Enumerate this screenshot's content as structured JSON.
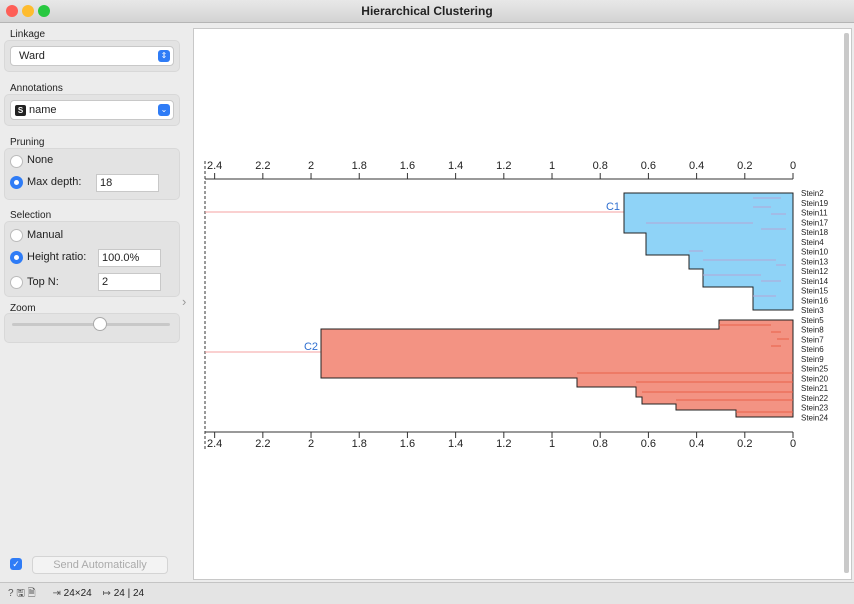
{
  "window": {
    "title": "Hierarchical Clustering"
  },
  "sidebar": {
    "linkage": {
      "label": "Linkage",
      "value": "Ward"
    },
    "annotations": {
      "label": "Annotations",
      "icon": "S",
      "value": "name"
    },
    "pruning": {
      "label": "Pruning",
      "options": [
        "None",
        "Max depth:"
      ],
      "max_depth": "18"
    },
    "selection": {
      "label": "Selection",
      "options": [
        "Manual",
        "Height ratio:",
        "Top N:"
      ],
      "height_ratio": "100.0%",
      "top_n": "2"
    },
    "zoom": {
      "label": "Zoom"
    },
    "send": "Send Automatically"
  },
  "dendrogram": {
    "xlim": [
      2.44,
      0
    ],
    "ticks": [
      2.4,
      2.2,
      2,
      1.8,
      1.6,
      1.4,
      1.2,
      1,
      0.8,
      0.6,
      0.4,
      0.2,
      0
    ],
    "clusters": [
      "C1",
      "C2"
    ],
    "leaves": [
      "Stein2",
      "Stein19",
      "Stein11",
      "Stein17",
      "Stein18",
      "Stein4",
      "Stein10",
      "Stein13",
      "Stein12",
      "Stein14",
      "Stein15",
      "Stein16",
      "Stein3",
      "Stein5",
      "Stein8",
      "Stein7",
      "Stein6",
      "Stein9",
      "Stein25",
      "Stein20",
      "Stein21",
      "Stein22",
      "Stein23",
      "Stein24"
    ]
  },
  "status": {
    "input": "24×24",
    "output": "24 | 24"
  }
}
